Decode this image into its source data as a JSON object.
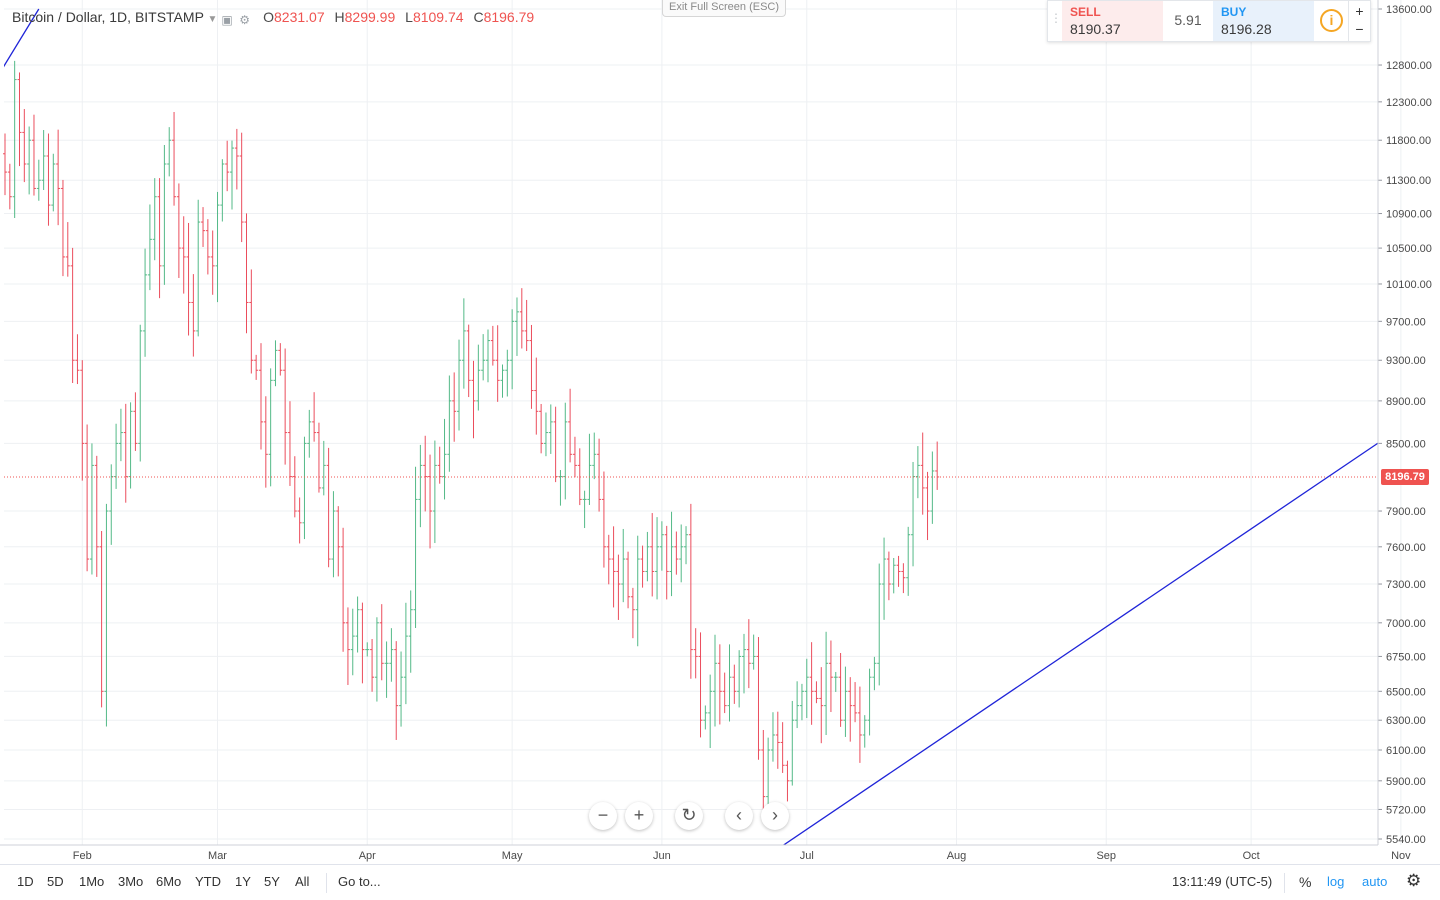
{
  "header": {
    "symbol": "Bitcoin / Dollar, 1D, BITSTAMP",
    "open_label": "O",
    "open": "8231.07",
    "high_label": "H",
    "high": "8299.99",
    "low_label": "L",
    "low": "8109.74",
    "close_label": "C",
    "close": "8196.79",
    "exit_fullscreen": "Exit Full Screen (ESC)"
  },
  "trade": {
    "sell_label": "SELL",
    "sell_price": "8190.37",
    "spread": "5.91",
    "buy_label": "BUY",
    "buy_price": "8196.28",
    "info_icon": "i",
    "zoom_in": "+",
    "zoom_out": "−"
  },
  "colors": {
    "up": "#53b987",
    "down": "#eb4d5c",
    "trendline": "#1f24d8",
    "price_line": "#ef5350",
    "grid": "#eef0f3"
  },
  "current_price": "8196.79",
  "toolbar": {
    "ranges": [
      "1D",
      "5D",
      "1Mo",
      "3Mo",
      "6Mo",
      "YTD",
      "1Y",
      "5Y",
      "All"
    ],
    "goto": "Go to...",
    "time": "13:11:49 (UTC-5)",
    "percent": "%",
    "log": "log",
    "auto": "auto",
    "settings_icon": "gear-icon"
  },
  "nav": {
    "zoom_out": "−",
    "zoom_in": "+",
    "reset": "↻",
    "back": "‹",
    "forward": "›"
  },
  "chart_data": {
    "type": "ohlc",
    "title": "Bitcoin / Dollar, 1D, BITSTAMP",
    "yscale": "log",
    "ylim": [
      5500,
      13600
    ],
    "x_range": [
      "2018-01-16",
      "2018-11-04"
    ],
    "y_ticks": [
      5540,
      5720,
      5900,
      6100,
      6300,
      6500,
      6750,
      7000,
      7300,
      7600,
      7900,
      8500,
      8900,
      9300,
      9700,
      10100,
      10500,
      10900,
      11300,
      11800,
      12300,
      12800,
      13600
    ],
    "x_ticks": [
      {
        "label": "Feb",
        "date": "2018-02-01"
      },
      {
        "label": "Mar",
        "date": "2018-03-01"
      },
      {
        "label": "Apr",
        "date": "2018-04-01"
      },
      {
        "label": "May",
        "date": "2018-05-01"
      },
      {
        "label": "Jun",
        "date": "2018-06-01"
      },
      {
        "label": "Jul",
        "date": "2018-07-01"
      },
      {
        "label": "Aug",
        "date": "2018-08-01"
      },
      {
        "label": "Sep",
        "date": "2018-09-01"
      },
      {
        "label": "Oct",
        "date": "2018-10-01"
      },
      {
        "label": "Nov",
        "date": "2018-11-01"
      }
    ],
    "grid": true,
    "start_date": "2018-01-16",
    "closes": [
      11400,
      11100,
      12600,
      11900,
      11500,
      11800,
      11200,
      11300,
      11600,
      11000,
      11500,
      11200,
      10400,
      10300,
      9300,
      9200,
      8500,
      7500,
      8300,
      7600,
      6500,
      7900,
      8200,
      8500,
      8600,
      8200,
      8800,
      8500,
      9600,
      10200,
      10600,
      11100,
      10300,
      11500,
      11800,
      11100,
      10500,
      10400,
      9900,
      9600,
      10800,
      10700,
      10400,
      10300,
      11000,
      11500,
      11400,
      11700,
      11600,
      10800,
      9900,
      9300,
      9200,
      8700,
      8400,
      9100,
      9400,
      9200,
      8600,
      8200,
      7900,
      7800,
      8500,
      8700,
      8600,
      8100,
      8300,
      7500,
      7900,
      7600,
      7000,
      6800,
      6900,
      7100,
      6800,
      6800,
      6600,
      7000,
      6700,
      6700,
      6800,
      6400,
      6600,
      6900,
      7100,
      8000,
      8300,
      8200,
      7900,
      8300,
      8200,
      8400,
      8900,
      8800,
      9300,
      9600,
      9100,
      8900,
      9200,
      9300,
      9500,
      9300,
      9100,
      9200,
      9300,
      9700,
      9800,
      9600,
      9500,
      9000,
      8800,
      8500,
      8600,
      8700,
      8200,
      8200,
      8700,
      8400,
      8300,
      8000,
      8000,
      8300,
      8400,
      8000,
      7600,
      7500,
      7400,
      7300,
      7500,
      7200,
      7100,
      7500,
      7400,
      7600,
      7400,
      7600,
      7700,
      7400,
      7600,
      7500,
      7600,
      7700,
      6800,
      6750,
      6300,
      6350,
      6500,
      6700,
      6500,
      6400,
      6600,
      6500,
      6750,
      6800,
      6700,
      6750,
      6100,
      5800,
      6100,
      6200,
      6150,
      6000,
      5900,
      6300,
      6400,
      6500,
      6600,
      6500,
      6450,
      6400,
      6700,
      6600,
      6600,
      6300,
      6500,
      6400,
      6350,
      6200,
      6300,
      6600,
      6700,
      7300,
      7500,
      7300,
      7450,
      7400,
      7350,
      7700,
      8200,
      8300,
      8100,
      7900,
      8250,
      8196.79
    ],
    "trendlines": [
      {
        "from": {
          "date": "2018-01-15",
          "price": 12700
        },
        "to": {
          "date": "2018-01-23",
          "price": 13600
        }
      },
      {
        "from": {
          "date": "2018-06-26",
          "price": 5500
        },
        "to": {
          "date": "2018-11-06",
          "price": 8800
        }
      }
    ]
  }
}
